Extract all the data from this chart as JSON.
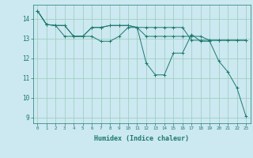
{
  "title": "",
  "xlabel": "Humidex (Indice chaleur)",
  "background_color": "#cce8f0",
  "grid_color": "#99ccbb",
  "line_color": "#1a7a6e",
  "xlim": [
    -0.5,
    23.5
  ],
  "ylim": [
    8.7,
    14.7
  ],
  "xticks": [
    0,
    1,
    2,
    3,
    4,
    5,
    6,
    7,
    8,
    9,
    10,
    11,
    12,
    13,
    14,
    15,
    16,
    17,
    18,
    19,
    20,
    21,
    22,
    23
  ],
  "yticks": [
    9,
    10,
    11,
    12,
    13,
    14
  ],
  "lines": [
    [
      14.4,
      13.7,
      13.65,
      13.65,
      13.1,
      13.1,
      13.1,
      12.85,
      12.85,
      13.1,
      13.55,
      13.55,
      11.75,
      11.15,
      11.15,
      12.25,
      12.25,
      13.2,
      12.85,
      12.85,
      11.85,
      11.3,
      10.5,
      9.05
    ],
    [
      14.4,
      13.7,
      13.65,
      13.65,
      13.1,
      13.1,
      13.55,
      13.55,
      13.65,
      13.65,
      13.65,
      13.55,
      13.1,
      13.1,
      13.1,
      13.1,
      13.1,
      13.1,
      13.1,
      12.9,
      12.9,
      12.9,
      12.9,
      12.9
    ],
    [
      14.4,
      13.7,
      13.65,
      13.1,
      13.1,
      13.1,
      13.55,
      13.55,
      13.65,
      13.65,
      13.65,
      13.55,
      13.55,
      13.55,
      13.55,
      13.55,
      13.55,
      12.9,
      12.9,
      12.9,
      12.9,
      12.9,
      12.9,
      12.9
    ]
  ]
}
